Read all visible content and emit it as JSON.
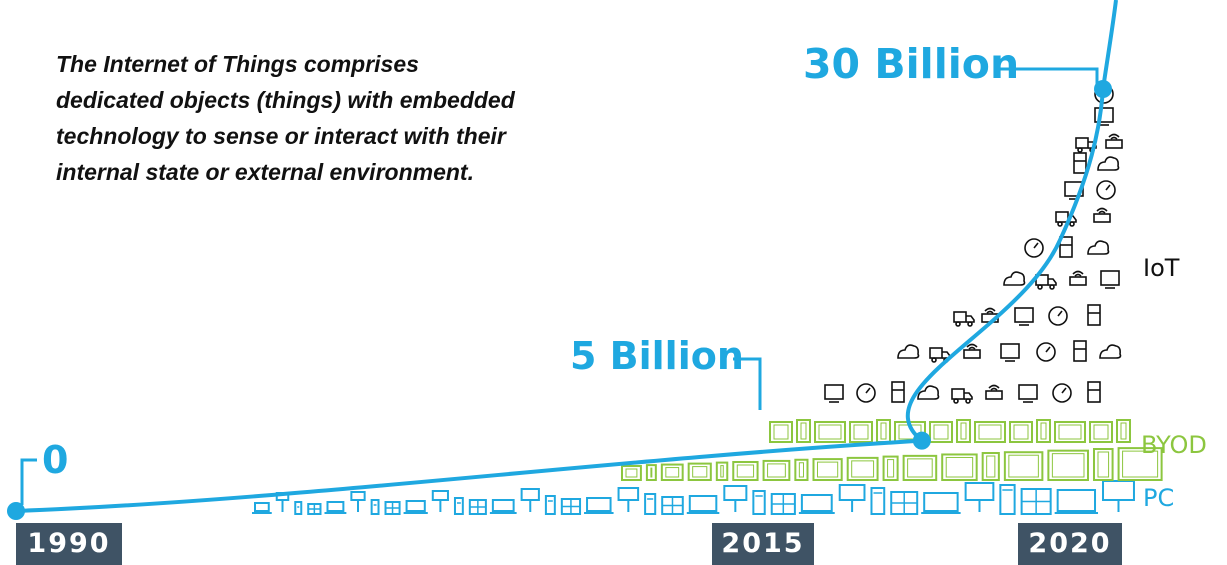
{
  "description": "The Internet of Things comprises dedicated objects (things) with embedded technology to sense or interact with their internal state or external environment.",
  "colors": {
    "accent": "#1fa8e0",
    "byod": "#8cc63f",
    "year_bar": "#3f5365",
    "icons": "#111111"
  },
  "icons": [
    "device-icon",
    "tablet-icon",
    "laptop-icon",
    "monitor-icon",
    "truck-icon",
    "cloud-icon",
    "thermometer-icon",
    "antenna-icon",
    "camera-icon",
    "printer-icon",
    "gauge-icon",
    "factory-icon",
    "tv-icon",
    "link-icon",
    "train-icon",
    "barcode-scanner-icon",
    "pharmacy-icon",
    "safe-icon",
    "billboard-icon",
    "atm-icon",
    "vending-icon",
    "waves-icon"
  ],
  "chart_data": {
    "type": "area",
    "title": "",
    "xlabel": "",
    "ylabel": "",
    "x": [
      1990,
      2015,
      2020
    ],
    "xticks": [
      "1990",
      "2015",
      "2020"
    ],
    "y": [
      0,
      5,
      30
    ],
    "unit": "Billion",
    "point_labels": [
      "0",
      "5 Billion",
      "30 Billion"
    ],
    "series": [
      {
        "name": "IoT"
      },
      {
        "name": "BYOD"
      },
      {
        "name": "PC"
      }
    ]
  }
}
